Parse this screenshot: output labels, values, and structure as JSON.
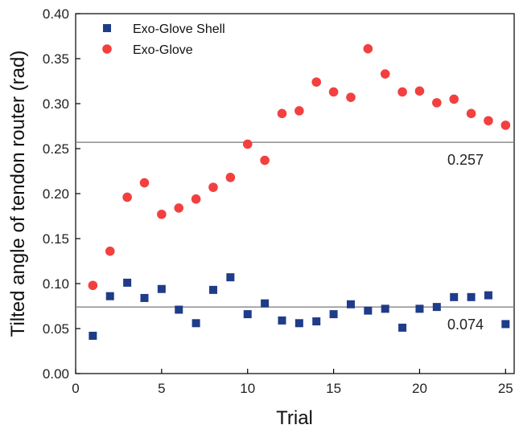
{
  "chart_data": {
    "type": "scatter",
    "title": "",
    "xlabel": "Trial",
    "ylabel": "Tilted angle of tendon router (rad)",
    "xlim": [
      0,
      25.5
    ],
    "ylim": [
      0,
      0.4
    ],
    "xticks": [
      0,
      5,
      10,
      15,
      20,
      25
    ],
    "yticks": [
      0.0,
      0.05,
      0.1,
      0.15,
      0.2,
      0.25,
      0.3,
      0.35,
      0.4
    ],
    "ytick_labels": [
      "0.00",
      "0.05",
      "0.10",
      "0.15",
      "0.20",
      "0.25",
      "0.30",
      "0.35",
      "0.40"
    ],
    "grid": false,
    "legend_position": "top-left",
    "series": [
      {
        "name": "Exo-Glove Shell",
        "marker": "square",
        "color": "#1f3c88",
        "x": [
          1,
          2,
          3,
          4,
          5,
          6,
          7,
          8,
          9,
          10,
          11,
          12,
          13,
          14,
          15,
          16,
          17,
          18,
          19,
          20,
          21,
          22,
          23,
          24,
          25
        ],
        "y": [
          0.042,
          0.086,
          0.101,
          0.084,
          0.094,
          0.071,
          0.056,
          0.093,
          0.107,
          0.066,
          0.078,
          0.059,
          0.056,
          0.058,
          0.066,
          0.077,
          0.07,
          0.072,
          0.051,
          0.072,
          0.074,
          0.085,
          0.085,
          0.087,
          0.055
        ]
      },
      {
        "name": "Exo-Glove",
        "marker": "circle",
        "color": "#f24040",
        "x": [
          1,
          2,
          3,
          4,
          5,
          6,
          7,
          8,
          9,
          10,
          11,
          12,
          13,
          14,
          15,
          16,
          17,
          18,
          19,
          20,
          21,
          22,
          23,
          24,
          25
        ],
        "y": [
          0.098,
          0.136,
          0.196,
          0.212,
          0.177,
          0.184,
          0.194,
          0.207,
          0.218,
          0.255,
          0.237,
          0.289,
          0.292,
          0.324,
          0.313,
          0.307,
          0.361,
          0.333,
          0.313,
          0.314,
          0.301,
          0.305,
          0.289,
          0.281,
          0.276
        ]
      }
    ],
    "reference_lines": [
      {
        "y": 0.257,
        "label": "0.257"
      },
      {
        "y": 0.074,
        "label": "0.074"
      }
    ]
  }
}
